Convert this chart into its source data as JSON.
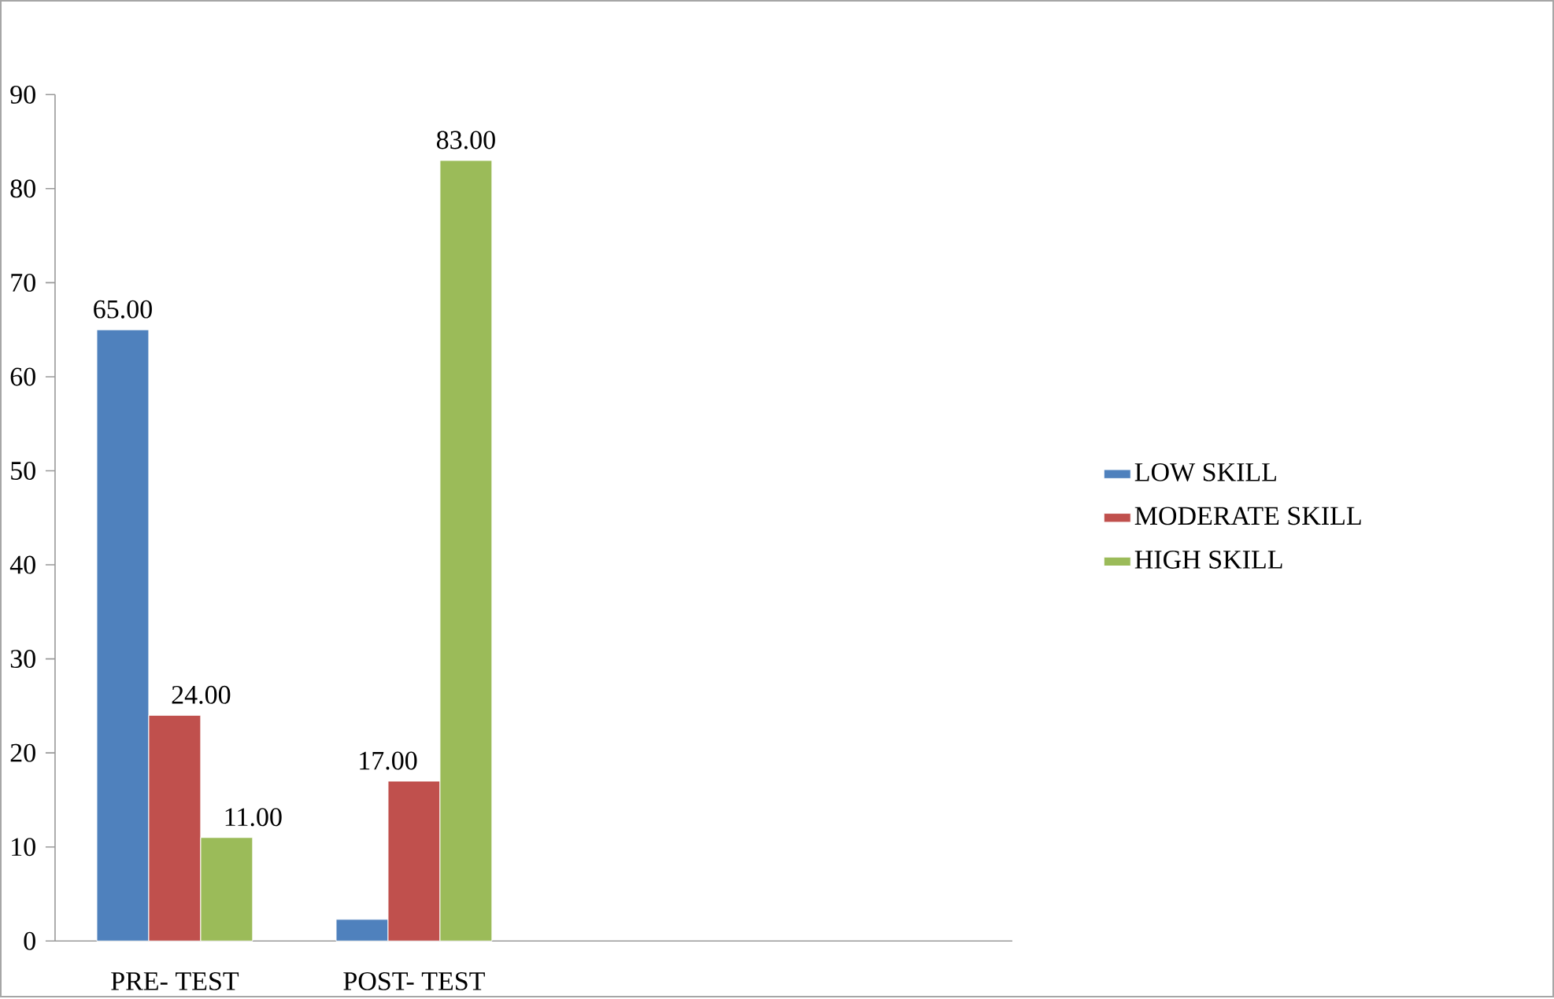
{
  "chart_data": {
    "type": "bar",
    "categories": [
      "PRE- TEST",
      "POST- TEST",
      null,
      null
    ],
    "series": [
      {
        "name": "LOW SKILL",
        "color": "#4f81bd",
        "values": [
          65,
          2.3,
          null,
          null
        ],
        "value_labels": [
          "65.00",
          null,
          null,
          null
        ]
      },
      {
        "name": "MODERATE SKILL",
        "color": "#c0504d",
        "values": [
          24,
          17,
          null,
          null
        ],
        "value_labels": [
          "24.00",
          "17.00",
          null,
          null
        ]
      },
      {
        "name": "HIGH SKILL",
        "color": "#9bbb59",
        "values": [
          11,
          83,
          null,
          null
        ],
        "value_labels": [
          "11.00",
          "83.00",
          null,
          null
        ]
      }
    ],
    "ylim": [
      0,
      90
    ],
    "yticks": [
      0,
      10,
      20,
      30,
      40,
      50,
      60,
      70,
      80,
      90
    ],
    "legend": "right"
  }
}
